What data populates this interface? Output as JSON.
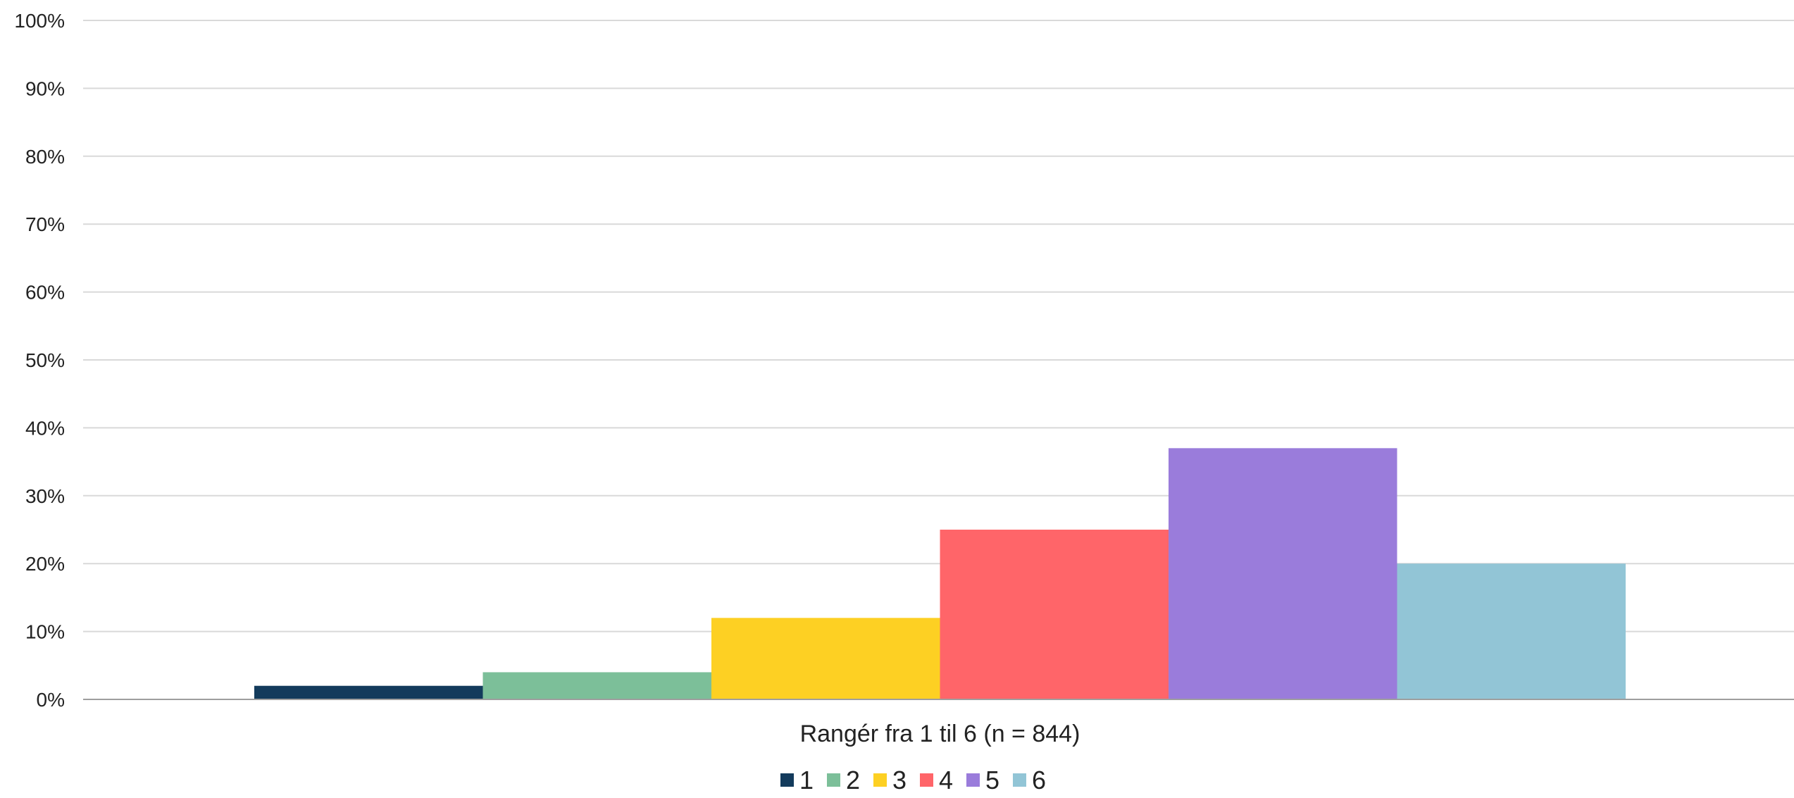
{
  "chart_data": {
    "type": "bar",
    "categories": [
      "Rangér fra 1 til 6 (n = 844)"
    ],
    "series": [
      {
        "name": "1",
        "values": [
          2
        ],
        "color": "#133b5c"
      },
      {
        "name": "2",
        "values": [
          4
        ],
        "color": "#7cbf99"
      },
      {
        "name": "3",
        "values": [
          12
        ],
        "color": "#fdd023"
      },
      {
        "name": "4",
        "values": [
          25
        ],
        "color": "#ff6569"
      },
      {
        "name": "5",
        "values": [
          37
        ],
        "color": "#9a7cdb"
      },
      {
        "name": "6",
        "values": [
          20
        ],
        "color": "#92c5d6"
      }
    ],
    "title": "",
    "xlabel": "",
    "ylabel": "",
    "ylim": [
      0,
      100
    ],
    "yticks": [
      "0%",
      "10%",
      "20%",
      "30%",
      "40%",
      "50%",
      "60%",
      "70%",
      "80%",
      "90%",
      "100%"
    ],
    "grid": true,
    "legend_position": "bottom"
  }
}
